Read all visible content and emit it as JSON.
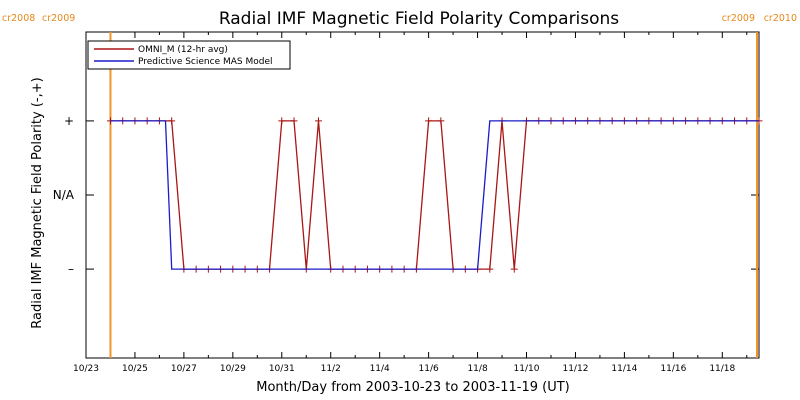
{
  "chart_data": {
    "type": "line",
    "title": "Radial IMF Magnetic Field Polarity Comparisons",
    "xlabel": "Month/Day from 2003-10-23 to 2003-11-19 (UT)",
    "ylabel": "Radial IMF Magnetic Field Polarity (-,+)",
    "x_start": "2003-10-23",
    "x_end": "2003-11-19",
    "xlim": [
      "2003-10-23T00:00",
      "2003-11-19T12:00"
    ],
    "ylim": [
      -2.2,
      2.2
    ],
    "y_ticks": [
      {
        "value": 1,
        "label": "+"
      },
      {
        "value": 0,
        "label": "N/A"
      },
      {
        "value": -1,
        "label": "–"
      }
    ],
    "x_ticks": [
      {
        "date": "2003-10-23",
        "label": "10/23"
      },
      {
        "date": "2003-10-25",
        "label": "10/25"
      },
      {
        "date": "2003-10-27",
        "label": "10/27"
      },
      {
        "date": "2003-10-29",
        "label": "10/29"
      },
      {
        "date": "2003-10-31",
        "label": "10/31"
      },
      {
        "date": "2003-11-02",
        "label": "11/2"
      },
      {
        "date": "2003-11-04",
        "label": "11/4"
      },
      {
        "date": "2003-11-06",
        "label": "11/6"
      },
      {
        "date": "2003-11-08",
        "label": "11/8"
      },
      {
        "date": "2003-11-10",
        "label": "11/10"
      },
      {
        "date": "2003-11-12",
        "label": "11/12"
      },
      {
        "date": "2003-11-14",
        "label": "11/14"
      },
      {
        "date": "2003-11-16",
        "label": "11/16"
      },
      {
        "date": "2003-11-18",
        "label": "11/18"
      }
    ],
    "carrington_markers": [
      {
        "date": "2003-10-24T00:00",
        "left_label": "cr2008",
        "right_label": "cr2009"
      },
      {
        "date": "2003-11-19T12:00",
        "left_label": "cr2009",
        "right_label": "cr2010"
      }
    ],
    "legend": {
      "position": "top-left"
    },
    "series": [
      {
        "name": "OMNI_M (12-hr avg)",
        "color": "#a81616",
        "markers": true,
        "points": [
          [
            "2003-10-24T00:00",
            1
          ],
          [
            "2003-10-24T12:00",
            1
          ],
          [
            "2003-10-25T00:00",
            1
          ],
          [
            "2003-10-25T12:00",
            1
          ],
          [
            "2003-10-26T00:00",
            1
          ],
          [
            "2003-10-26T12:00",
            1
          ],
          [
            "2003-10-27T00:00",
            -1
          ],
          [
            "2003-10-27T12:00",
            -1
          ],
          [
            "2003-10-28T00:00",
            -1
          ],
          [
            "2003-10-28T12:00",
            -1
          ],
          [
            "2003-10-29T00:00",
            -1
          ],
          [
            "2003-10-29T12:00",
            -1
          ],
          [
            "2003-10-30T00:00",
            -1
          ],
          [
            "2003-10-30T12:00",
            -1
          ],
          [
            "2003-10-31T00:00",
            1
          ],
          [
            "2003-10-31T12:00",
            1
          ],
          [
            "2003-11-01T00:00",
            -1
          ],
          [
            "2003-11-01T12:00",
            1
          ],
          [
            "2003-11-02T00:00",
            -1
          ],
          [
            "2003-11-02T12:00",
            -1
          ],
          [
            "2003-11-03T00:00",
            -1
          ],
          [
            "2003-11-03T12:00",
            -1
          ],
          [
            "2003-11-04T00:00",
            -1
          ],
          [
            "2003-11-04T12:00",
            -1
          ],
          [
            "2003-11-05T00:00",
            -1
          ],
          [
            "2003-11-05T12:00",
            -1
          ],
          [
            "2003-11-06T00:00",
            1
          ],
          [
            "2003-11-06T12:00",
            1
          ],
          [
            "2003-11-07T00:00",
            -1
          ],
          [
            "2003-11-07T12:00",
            -1
          ],
          [
            "2003-11-08T00:00",
            -1
          ],
          [
            "2003-11-08T12:00",
            -1
          ],
          [
            "2003-11-09T00:00",
            1
          ],
          [
            "2003-11-09T12:00",
            -1
          ],
          [
            "2003-11-10T00:00",
            1
          ],
          [
            "2003-11-10T12:00",
            1
          ],
          [
            "2003-11-11T00:00",
            1
          ],
          [
            "2003-11-11T12:00",
            1
          ],
          [
            "2003-11-12T00:00",
            1
          ],
          [
            "2003-11-12T12:00",
            1
          ],
          [
            "2003-11-13T00:00",
            1
          ],
          [
            "2003-11-13T12:00",
            1
          ],
          [
            "2003-11-14T00:00",
            1
          ],
          [
            "2003-11-14T12:00",
            1
          ],
          [
            "2003-11-15T00:00",
            1
          ],
          [
            "2003-11-15T12:00",
            1
          ],
          [
            "2003-11-16T00:00",
            1
          ],
          [
            "2003-11-16T12:00",
            1
          ],
          [
            "2003-11-17T00:00",
            1
          ],
          [
            "2003-11-17T12:00",
            1
          ],
          [
            "2003-11-18T00:00",
            1
          ],
          [
            "2003-11-18T12:00",
            1
          ],
          [
            "2003-11-19T00:00",
            1
          ],
          [
            "2003-11-19T12:00",
            1
          ]
        ]
      },
      {
        "name": "Predictive Science MAS Model",
        "color": "#1c1cc8",
        "markers": false,
        "points": [
          [
            "2003-10-24T00:00",
            1
          ],
          [
            "2003-10-26T06:00",
            1
          ],
          [
            "2003-10-26T12:00",
            -1
          ],
          [
            "2003-11-08T00:00",
            -1
          ],
          [
            "2003-11-08T12:00",
            1
          ],
          [
            "2003-11-19T12:00",
            1
          ]
        ]
      }
    ]
  }
}
